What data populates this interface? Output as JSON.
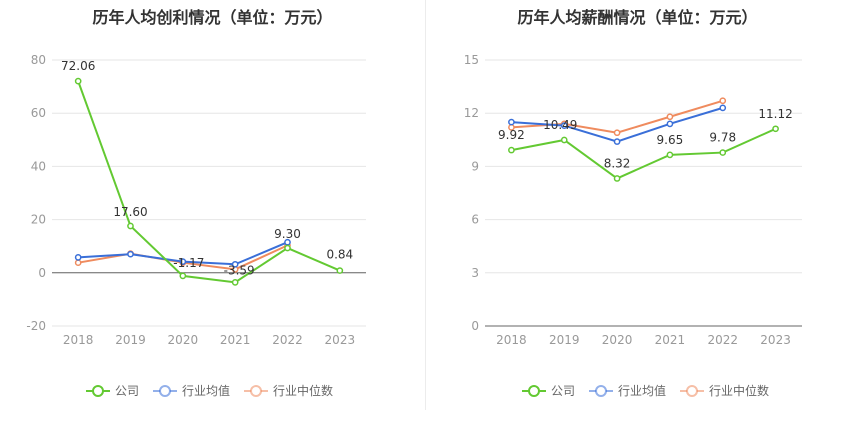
{
  "chart_data": [
    {
      "type": "line",
      "title": "历年人均创利情况（单位：万元）",
      "categories": [
        "2018",
        "2019",
        "2020",
        "2021",
        "2022",
        "2023"
      ],
      "ylim": [
        -20,
        80
      ],
      "yticks": [
        "-20",
        "0",
        "20",
        "40",
        "60",
        "80"
      ],
      "grid": true,
      "legend_position": "bottom-center",
      "series": [
        {
          "name": "公司",
          "color": "#63c932",
          "values": [
            72.06,
            17.6,
            -1.17,
            -3.59,
            9.3,
            0.84
          ],
          "labels": [
            "72.06",
            "17.60",
            "-1.17",
            "-3.59",
            "9.30",
            "0.84"
          ]
        },
        {
          "name": "行业均值",
          "color": "#3a6fd8",
          "values": [
            5.8,
            7.0,
            4.2,
            3.2,
            11.5,
            null
          ]
        },
        {
          "name": "行业中位数",
          "color": "#ef8b5e",
          "values": [
            3.8,
            7.2,
            3.8,
            1.3,
            10.3,
            null
          ]
        }
      ]
    },
    {
      "type": "line",
      "title": "历年人均薪酬情况（单位：万元）",
      "categories": [
        "2018",
        "2019",
        "2020",
        "2021",
        "2022",
        "2023"
      ],
      "ylim": [
        0,
        15
      ],
      "yticks": [
        "0",
        "3",
        "6",
        "9",
        "12",
        "15"
      ],
      "grid": true,
      "legend_position": "bottom-center",
      "series": [
        {
          "name": "公司",
          "color": "#63c932",
          "values": [
            9.92,
            10.49,
            8.32,
            9.65,
            9.78,
            11.12
          ],
          "labels": [
            "9.92",
            "10.49",
            "8.32",
            "9.65",
            "9.78",
            "11.12"
          ]
        },
        {
          "name": "行业均值",
          "color": "#3a6fd8",
          "values": [
            11.5,
            11.3,
            10.4,
            11.4,
            12.3,
            null
          ]
        },
        {
          "name": "行业中位数",
          "color": "#ef8b5e",
          "values": [
            11.2,
            11.4,
            10.9,
            11.8,
            12.7,
            null
          ]
        }
      ]
    }
  ]
}
